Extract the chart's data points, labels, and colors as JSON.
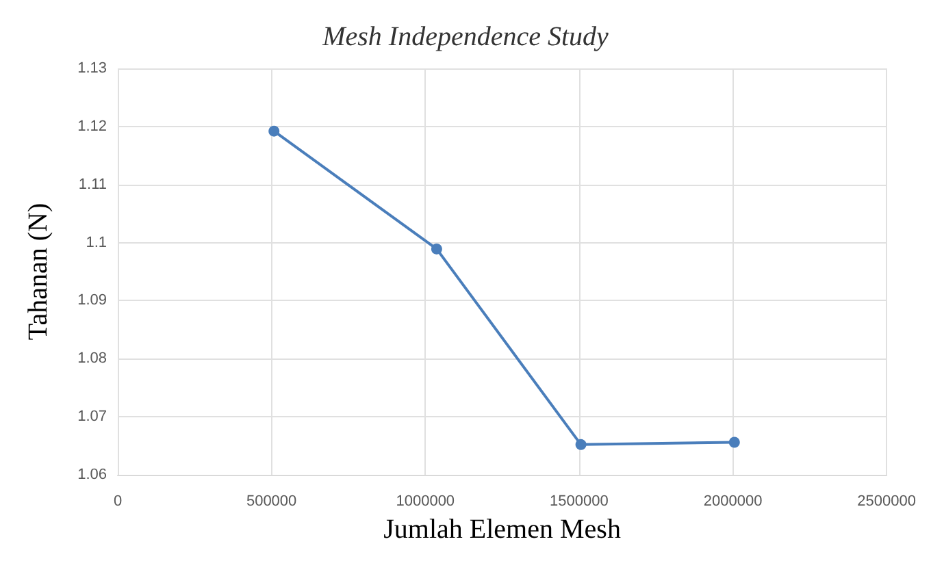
{
  "chart_data": {
    "type": "line",
    "title": "Mesh Independence Study",
    "xlabel": "Jumlah Elemen Mesh",
    "ylabel": "Tahanan (N)",
    "x": [
      508000,
      1037000,
      1506000,
      2005000
    ],
    "series": [
      {
        "color": "#4a7ebb",
        "values": [
          1.1192,
          1.0989,
          1.0652,
          1.0656
        ]
      }
    ],
    "xlim": [
      0,
      2500000
    ],
    "xticks": [
      0,
      500000,
      1000000,
      1500000,
      2000000,
      2500000
    ],
    "ylim": [
      1.06,
      1.13
    ],
    "yticks": [
      1.06,
      1.07,
      1.08,
      1.09,
      1.1,
      1.11,
      1.12,
      1.13
    ],
    "grid": true,
    "marker": "circle",
    "line_style": "solid"
  }
}
